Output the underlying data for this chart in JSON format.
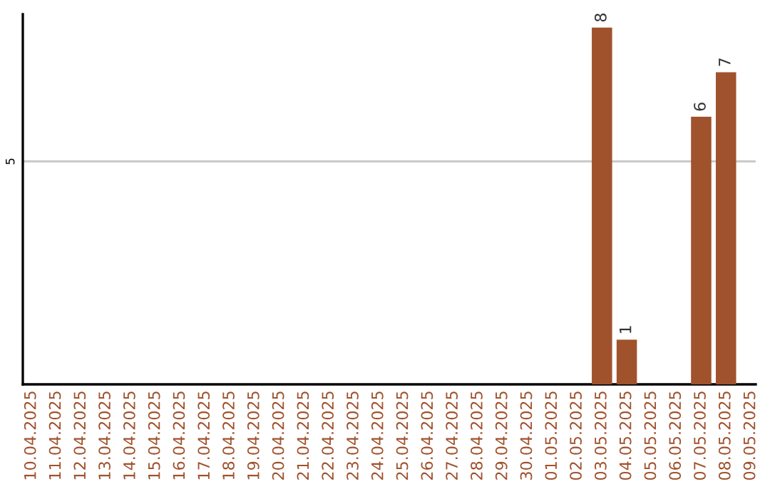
{
  "chart_data": {
    "type": "bar",
    "categories": [
      "10.04.2025",
      "11.04.2025",
      "12.04.2025",
      "13.04.2025",
      "14.04.2025",
      "15.04.2025",
      "16.04.2025",
      "17.04.2025",
      "18.04.2025",
      "19.04.2025",
      "20.04.2025",
      "21.04.2025",
      "22.04.2025",
      "23.04.2025",
      "24.04.2025",
      "25.04.2025",
      "26.04.2025",
      "27.04.2025",
      "28.04.2025",
      "29.04.2025",
      "30.04.2025",
      "01.05.2025",
      "02.05.2025",
      "03.05.2025",
      "04.05.2025",
      "05.05.2025",
      "06.05.2025",
      "07.05.2025",
      "08.05.2025",
      "09.05.2025"
    ],
    "values": [
      null,
      null,
      null,
      null,
      null,
      null,
      null,
      null,
      null,
      null,
      null,
      null,
      null,
      null,
      null,
      null,
      null,
      null,
      null,
      null,
      null,
      null,
      null,
      8,
      1,
      null,
      null,
      6,
      7,
      null
    ],
    "color": "#a0522d",
    "ylim": [
      0,
      8.3
    ],
    "yticks": [
      5
    ],
    "grid": "y",
    "data_labels": true
  }
}
